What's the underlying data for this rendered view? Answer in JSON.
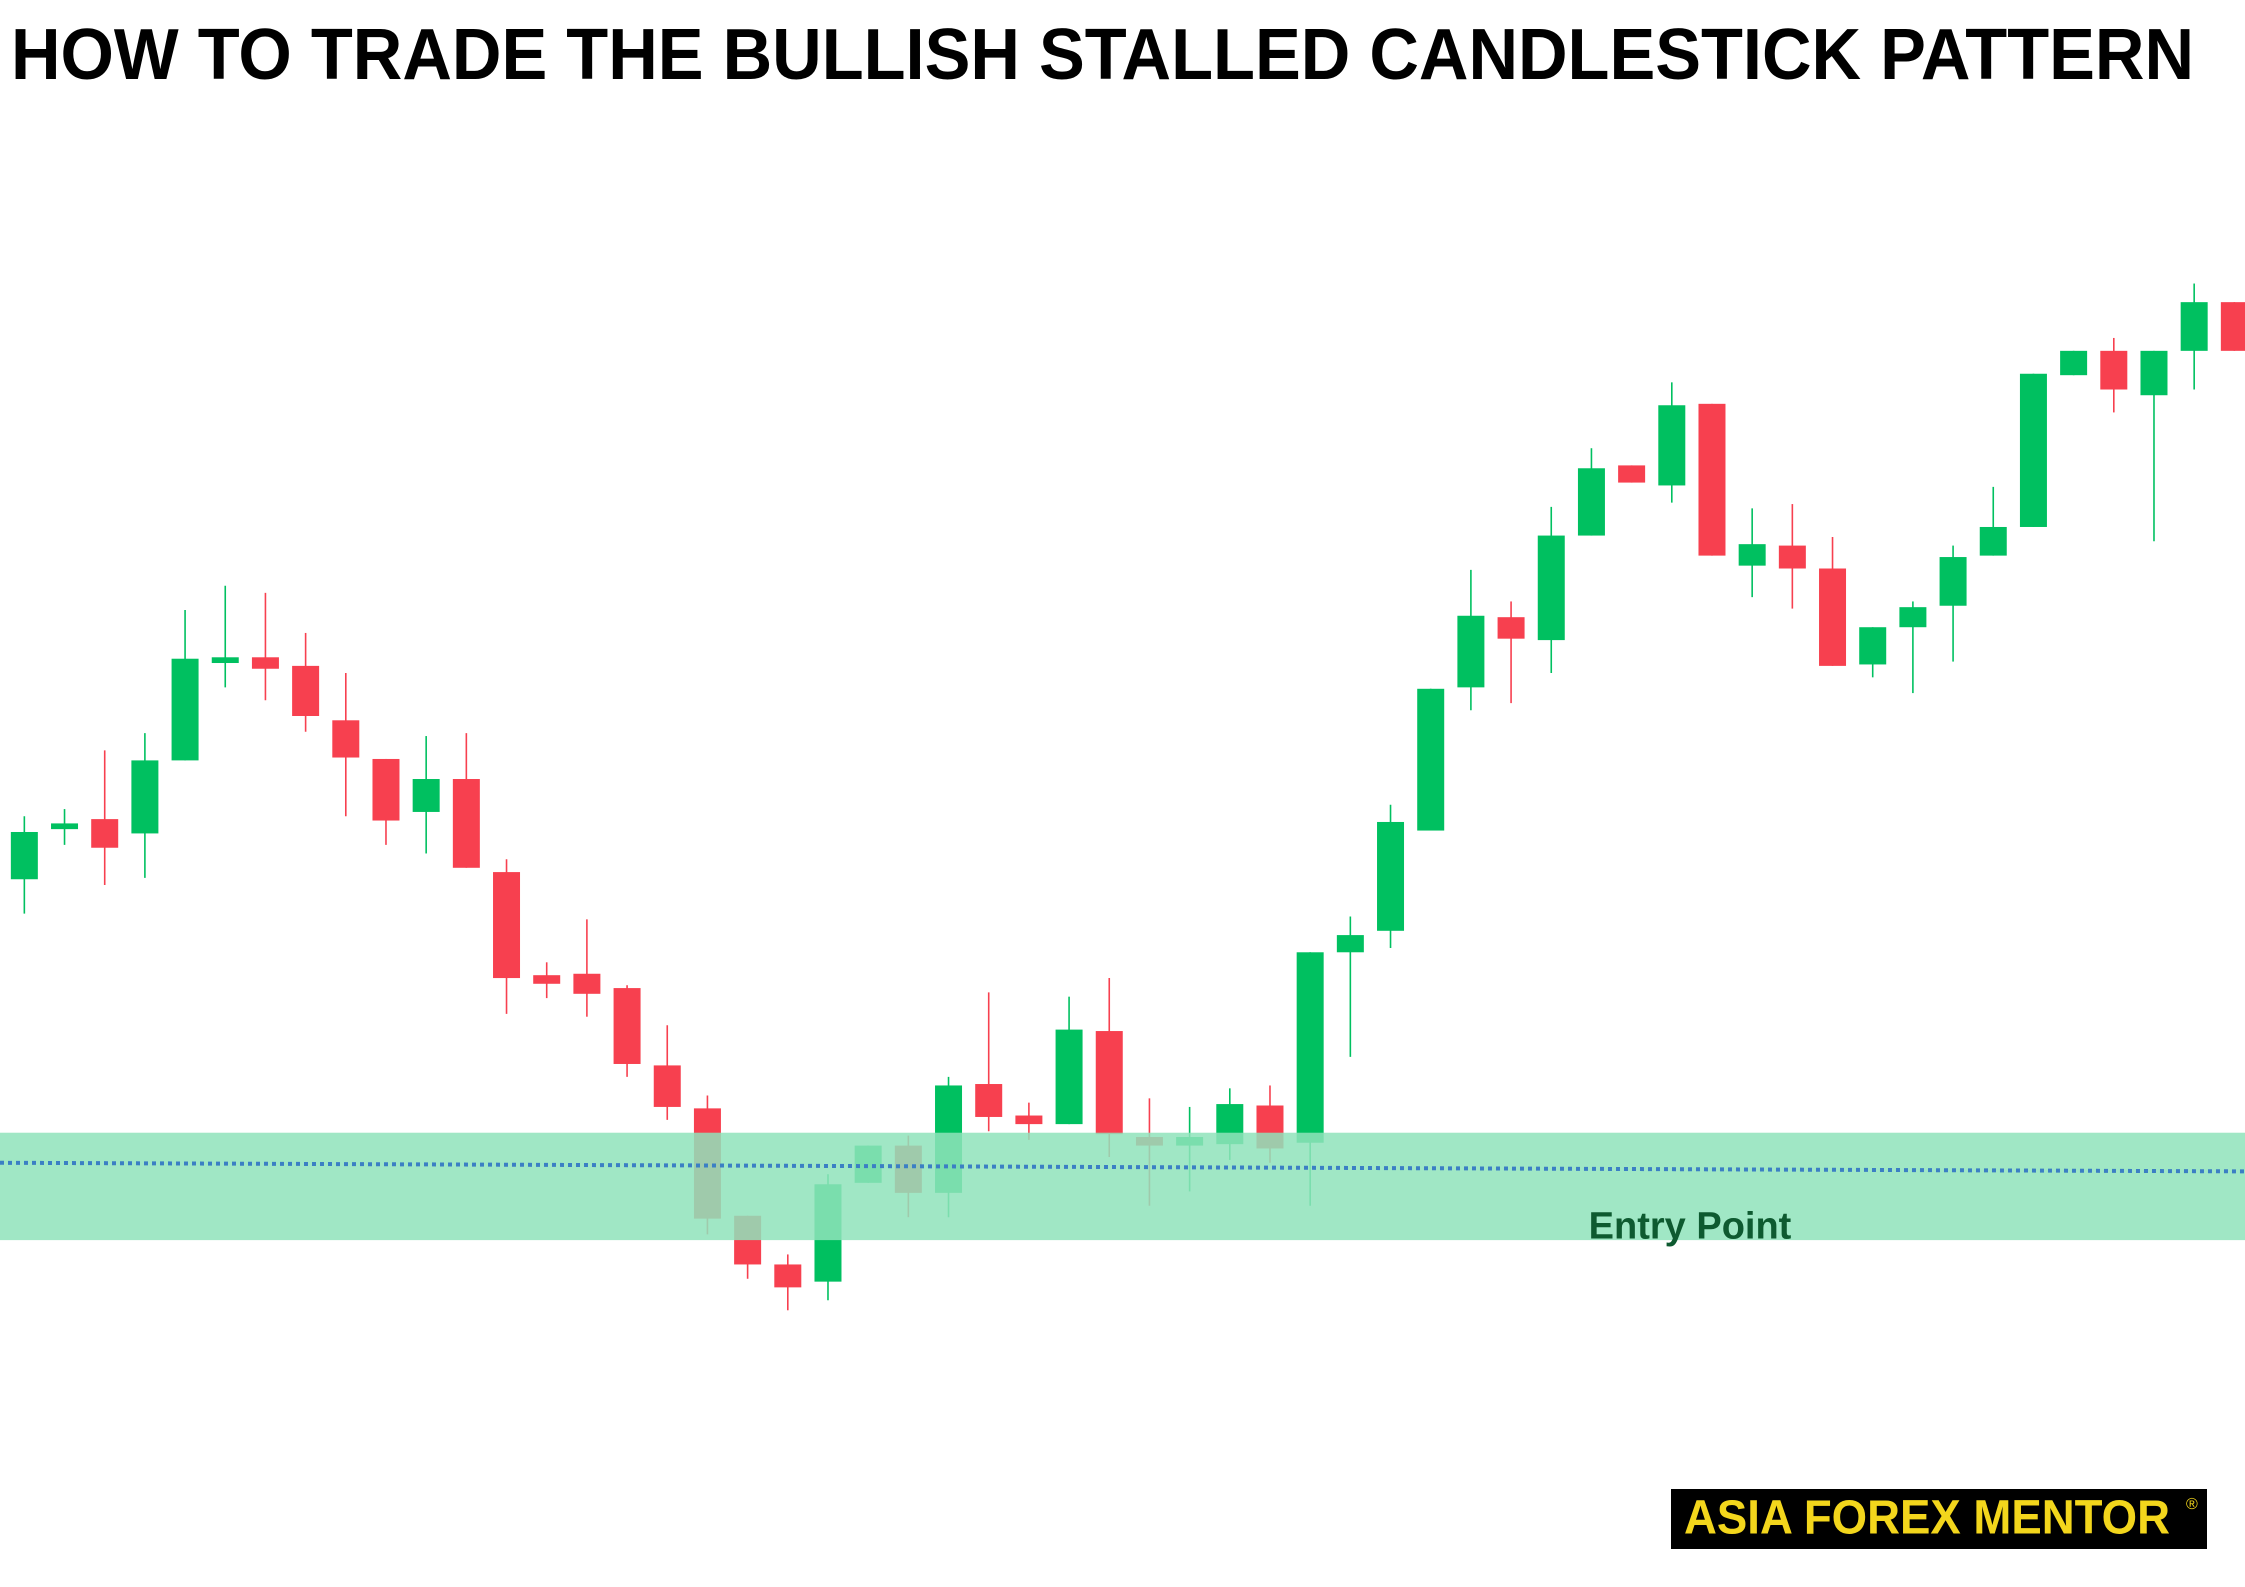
{
  "chart_data": {
    "type": "candlestick",
    "title": "HOW TO TRADE THE BULLISH STALLED CANDLESTICK PATTERN",
    "open": [
      386,
      421,
      428,
      418,
      469,
      537,
      541,
      535,
      497,
      470,
      433,
      456,
      391,
      319,
      320,
      310,
      256,
      226,
      151,
      117,
      105,
      174,
      200,
      167,
      243,
      221,
      215,
      280,
      206,
      200,
      201,
      228,
      202,
      335,
      350,
      420,
      520,
      569,
      553,
      626,
      675,
      661,
      718,
      605,
      619,
      603,
      536,
      562,
      577,
      612,
      632,
      738,
      755,
      724,
      755,
      789
    ],
    "high": [
      430,
      435,
      476,
      488,
      574,
      591,
      586,
      558,
      530,
      470,
      486,
      488,
      400,
      328,
      358,
      312,
      284,
      235,
      151,
      124,
      180,
      200,
      207,
      248,
      307,
      230,
      304,
      317,
      233,
      227,
      240,
      242,
      335,
      360,
      438,
      519,
      602,
      580,
      646,
      687,
      675,
      733,
      718,
      645,
      648,
      625,
      562,
      580,
      619,
      660,
      739,
      755,
      764,
      755,
      802,
      789
    ],
    "low": [
      362,
      410,
      382,
      387,
      469,
      520,
      511,
      489,
      430,
      410,
      404,
      394,
      292,
      303,
      290,
      248,
      218,
      138,
      107,
      85,
      92,
      174,
      150,
      150,
      210,
      204,
      215,
      192,
      158,
      168,
      190,
      188,
      158,
      262,
      338,
      420,
      504,
      509,
      530,
      626,
      663,
      649,
      612,
      583,
      575,
      535,
      527,
      516,
      538,
      612,
      632,
      738,
      712,
      622,
      728,
      755
    ],
    "close": [
      419,
      425,
      408,
      469,
      540,
      541,
      533,
      500,
      471,
      427,
      456,
      394,
      317,
      313,
      306,
      257,
      227,
      149,
      117,
      101,
      173,
      200,
      167,
      242,
      220,
      215,
      281,
      208,
      200,
      206,
      229,
      198,
      335,
      347,
      426,
      519,
      570,
      554,
      626,
      673,
      663,
      717,
      612,
      620,
      603,
      535,
      562,
      576,
      611,
      632,
      739,
      755,
      728,
      755,
      789,
      755
    ],
    "up_color": "#00c060",
    "down_color": "#f7404f",
    "ylim": [
      0,
      1000
    ],
    "zone": [
      134,
      209
    ],
    "zone_color": "#8fe3bb",
    "entry_line": [
      188,
      182
    ],
    "entry_line_color": "#3b7fc4",
    "zone_label": "Entry Point",
    "logo": "ASIA FOREX MENTOR",
    "logo_mark": "®"
  }
}
